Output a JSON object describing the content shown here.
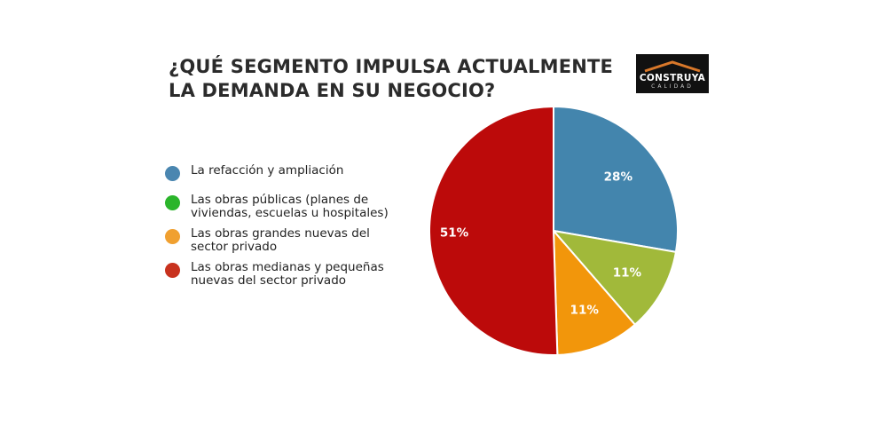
{
  "title_lines": [
    "¿QUÉ SEGMENTO IMPULSA ACTUALMENTE",
    "LA DEMANDA EN SU NEGOCIO?"
  ],
  "logo": {
    "name": "CONSTRUYA",
    "sub": "CALIDAD"
  },
  "chart_data": {
    "type": "pie",
    "title": "¿QUÉ SEGMENTO IMPULSA ACTUALMENTE LA DEMANDA EN SU NEGOCIO?",
    "legend_position": "left",
    "categories": [
      "La refacción y ampliación",
      "Las obras públicas (planes de viviendas, escuelas u hospitales)",
      "Las obras grandes nuevas del sector privado",
      "Las obras medianas y pequeñas nuevas del sector privado"
    ],
    "legend_lines": [
      [
        "La refacción y ampliación"
      ],
      [
        "Las obras públicas (planes de",
        "viviendas, escuelas u hospitales)"
      ],
      [
        "Las obras grandes nuevas del",
        "sector privado"
      ],
      [
        "Las obras medianas y pequeñas",
        "nuevas del sector privado"
      ]
    ],
    "legend_colors": [
      "#4a86b0",
      "#2bb52b",
      "#f0a030",
      "#c8321e"
    ],
    "slices": [
      {
        "label": "28%",
        "value": 28,
        "color": "#4385ad"
      },
      {
        "label": "11%",
        "value": 11,
        "color": "#a1b93a"
      },
      {
        "label": "11%",
        "value": 11,
        "color": "#f2960b"
      },
      {
        "label": "51%",
        "value": 51,
        "color": "#bc0a0a"
      }
    ]
  }
}
